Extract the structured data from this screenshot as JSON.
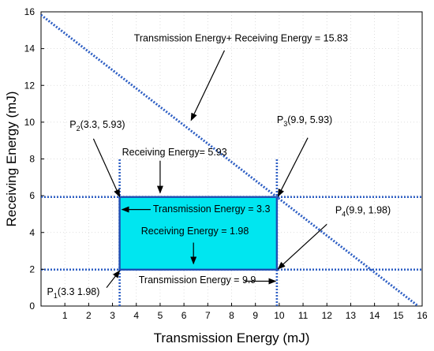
{
  "chart_data": {
    "type": "line",
    "xlabel": "Transmission Energy (mJ)",
    "ylabel": "Receiving Energy (mJ)",
    "xlim": [
      0,
      16
    ],
    "ylim": [
      0,
      16
    ],
    "x_ticks": [
      "1",
      "2",
      "3",
      "4",
      "5",
      "6",
      "7",
      "8",
      "9",
      "10",
      "11",
      "12",
      "13",
      "14",
      "15",
      "16"
    ],
    "y_ticks": [
      "0",
      "2",
      "4",
      "6",
      "8",
      "10",
      "12",
      "14",
      "16"
    ],
    "grid": true,
    "colors": {
      "line": "#2e5fc4",
      "rect_fill": "#00e6f0",
      "rect_border": "#1f4fb4"
    },
    "series": [
      {
        "type": "line",
        "x": [
          0,
          15.83
        ],
        "y": [
          15.83,
          0
        ]
      }
    ],
    "guides": {
      "x_vertical": [
        3.3,
        9.9
      ],
      "y_horizontal": [
        1.98,
        5.93
      ]
    },
    "rectangle": {
      "x": [
        3.3,
        9.9
      ],
      "y": [
        1.98,
        5.93
      ]
    },
    "points": [
      {
        "name": "P",
        "sub": "1",
        "coords": "(3.3 1.98)",
        "x": 3.3,
        "y": 1.98
      },
      {
        "name": "P",
        "sub": "2",
        "coords": "(3.3, 5.93)",
        "x": 3.3,
        "y": 5.93
      },
      {
        "name": "P",
        "sub": "3",
        "coords": "(9.9, 5.93)",
        "x": 9.9,
        "y": 5.93
      },
      {
        "name": "P",
        "sub": "4",
        "coords": "(9.9, 1.98)",
        "x": 9.9,
        "y": 1.98
      }
    ],
    "annotations": {
      "sum_line": "Transmission Energy+ Receiving Energy = 15.83",
      "receiving_top": "Receiving Energy= 5.93",
      "transmission_left": "Transmission Energy = 3.3",
      "receiving_inside": "Receiving Energy = 1.98",
      "transmission_bottom": "Transmission Energy = 9.9"
    }
  }
}
